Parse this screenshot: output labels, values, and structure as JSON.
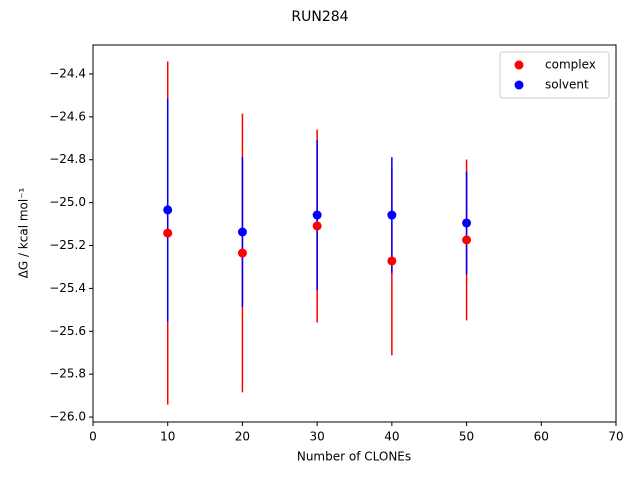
{
  "chart_data": {
    "type": "scatter",
    "title": "RUN284",
    "xlabel": "Number of CLONEs",
    "ylabel": "ΔG / kcal mol⁻¹",
    "x": [
      10,
      20,
      30,
      40,
      50
    ],
    "series": [
      {
        "name": "complex",
        "color": "#ff0000",
        "values": [
          -25.142,
          -25.235,
          -25.109,
          -25.272,
          -25.174
        ],
        "errors": [
          0.8,
          0.65,
          0.45,
          0.44,
          0.375
        ]
      },
      {
        "name": "solvent",
        "color": "#0000ff",
        "values": [
          -25.034,
          -25.137,
          -25.058,
          -25.058,
          -25.095
        ],
        "errors": [
          0.52,
          0.35,
          0.35,
          0.27,
          0.24
        ]
      }
    ],
    "xlim": [
      0,
      70
    ],
    "xticks": [
      0,
      10,
      20,
      30,
      40,
      50,
      60,
      70
    ],
    "ylim": [
      -26.023,
      -24.265
    ],
    "yticks": [
      {
        "value": -26.0,
        "label": "−26.0"
      },
      {
        "value": -25.8,
        "label": "−25.8"
      },
      {
        "value": -25.6,
        "label": "−25.6"
      },
      {
        "value": -25.4,
        "label": "−25.4"
      },
      {
        "value": -25.2,
        "label": "−25.2"
      },
      {
        "value": -25.0,
        "label": "−25.0"
      },
      {
        "value": -24.8,
        "label": "−24.8"
      },
      {
        "value": -24.6,
        "label": "−24.6"
      },
      {
        "value": -24.4,
        "label": "−24.4"
      }
    ],
    "legend": "upper right",
    "grid": false
  }
}
